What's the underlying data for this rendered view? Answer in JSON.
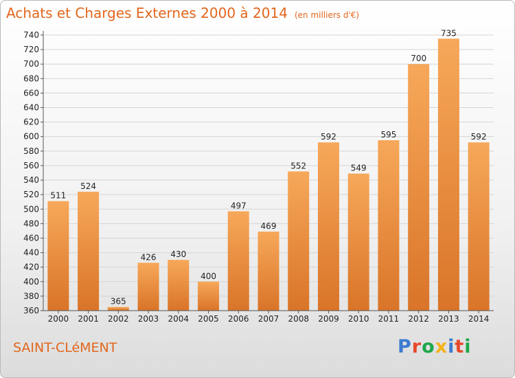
{
  "header": {
    "title": "Achats et Charges Externes 2000 à 2014",
    "unit": "(en milliers d'€)"
  },
  "footer": {
    "city": "SAINT-CLéMENT",
    "logo_text": "Proxiti"
  },
  "colors": {
    "accent": "#e2661c",
    "bar_light": "#f7a85a",
    "bar_dark": "#d97428",
    "logo": [
      "#3b7bd0",
      "#e6482a",
      "#1ea64a",
      "#f3b21a",
      "#3b7bd0",
      "#e6482a",
      "#1ea64a"
    ]
  },
  "chart_data": {
    "type": "bar",
    "categories": [
      "2000",
      "2001",
      "2002",
      "2003",
      "2004",
      "2005",
      "2006",
      "2007",
      "2008",
      "2009",
      "2010",
      "2011",
      "2012",
      "2013",
      "2014"
    ],
    "values": [
      511,
      524,
      365,
      426,
      430,
      400,
      497,
      469,
      552,
      592,
      549,
      595,
      700,
      735,
      592
    ],
    "ylim": [
      360,
      740
    ],
    "yticks": [
      "360",
      "380",
      "400",
      "420",
      "440",
      "460",
      "480",
      "500",
      "520",
      "540",
      "560",
      "580",
      "600",
      "620",
      "640",
      "660",
      "680",
      "700",
      "720",
      "740"
    ],
    "grid": true,
    "legend": "none"
  }
}
